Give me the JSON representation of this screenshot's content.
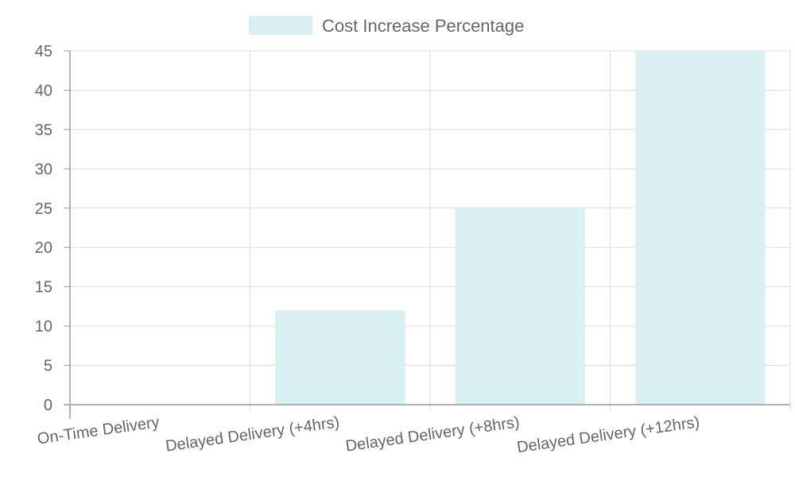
{
  "chart_data": {
    "type": "bar",
    "categories": [
      "On-Time Delivery",
      "Delayed Delivery (+4hrs)",
      "Delayed Delivery (+8hrs)",
      "Delayed Delivery (+12hrs)"
    ],
    "series": [
      {
        "name": "Cost Increase Percentage",
        "values": [
          0,
          12,
          25,
          45
        ]
      }
    ],
    "ylim": [
      0,
      45
    ],
    "yticks": [
      0,
      5,
      10,
      15,
      20,
      25,
      30,
      35,
      40,
      45
    ],
    "grid": true,
    "legend_position": "top-center",
    "colors": {
      "bar_fill": "#d9f0f2",
      "grid": "#dddddd",
      "axis": "#999999",
      "text": "#666666"
    }
  }
}
